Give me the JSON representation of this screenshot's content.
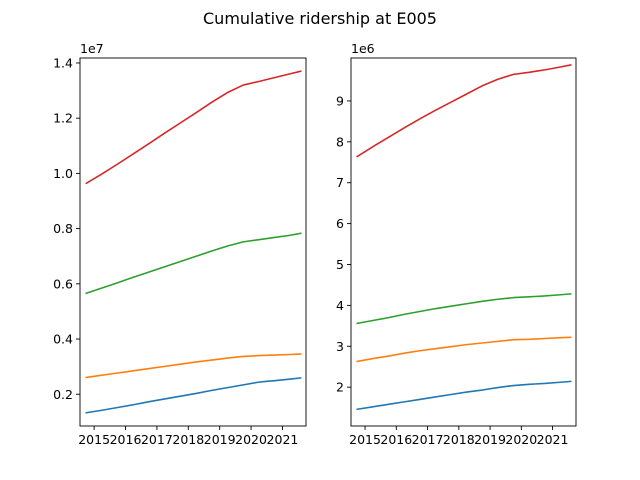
{
  "figure": {
    "title": "Cumulative ridership at E005"
  },
  "chart_data": [
    {
      "type": "line",
      "title": "",
      "xlabel": "",
      "ylabel": "",
      "y_offset_label": "1e7",
      "xlim": [
        2014.55,
        2021.75
      ],
      "ylim": [
        850000,
        14180000
      ],
      "x_ticks": [
        2015,
        2016,
        2017,
        2018,
        2019,
        2020,
        2021
      ],
      "x_tick_labels": [
        "2015",
        "2016",
        "2017",
        "2018",
        "2019",
        "2020",
        "2021"
      ],
      "y_ticks": [
        2000000,
        4000000,
        6000000,
        8000000,
        10000000,
        12000000,
        14000000
      ],
      "y_tick_labels": [
        "0.2",
        "0.4",
        "0.6",
        "0.8",
        "1.0",
        "1.2",
        "1.4"
      ],
      "grid": false,
      "x": [
        2014.75,
        2015.25,
        2015.75,
        2016.25,
        2016.75,
        2017.25,
        2017.75,
        2018.25,
        2018.75,
        2019.25,
        2019.75,
        2020.25,
        2020.5,
        2020.75,
        2021.25,
        2021.58
      ],
      "series": [
        {
          "color": "#1f77b4",
          "values": [
            1330000,
            1420000,
            1520000,
            1620000,
            1730000,
            1830000,
            1930000,
            2030000,
            2140000,
            2240000,
            2340000,
            2440000,
            2470000,
            2490000,
            2550000,
            2590000
          ]
        },
        {
          "color": "#ff7f0e",
          "values": [
            2610000,
            2690000,
            2770000,
            2850000,
            2930000,
            3010000,
            3090000,
            3170000,
            3240000,
            3310000,
            3370000,
            3400000,
            3410000,
            3420000,
            3440000,
            3460000
          ]
        },
        {
          "color": "#2ca02c",
          "values": [
            5660000,
            5850000,
            6040000,
            6240000,
            6430000,
            6620000,
            6810000,
            7000000,
            7190000,
            7370000,
            7520000,
            7600000,
            7640000,
            7680000,
            7760000,
            7830000
          ]
        },
        {
          "color": "#d62728",
          "values": [
            9640000,
            9980000,
            10340000,
            10710000,
            11080000,
            11460000,
            11830000,
            12200000,
            12580000,
            12930000,
            13200000,
            13330000,
            13400000,
            13470000,
            13610000,
            13700000
          ]
        }
      ]
    },
    {
      "type": "line",
      "title": "",
      "xlabel": "",
      "ylabel": "",
      "y_offset_label": "1e6",
      "xlim": [
        2014.55,
        2021.75
      ],
      "ylim": [
        1050000,
        10050000
      ],
      "x_ticks": [
        2015,
        2016,
        2017,
        2018,
        2019,
        2020,
        2021
      ],
      "x_tick_labels": [
        "2015",
        "2016",
        "2017",
        "2018",
        "2019",
        "2020",
        "2021"
      ],
      "y_ticks": [
        2000000,
        3000000,
        4000000,
        5000000,
        6000000,
        7000000,
        8000000,
        9000000
      ],
      "y_tick_labels": [
        "2",
        "3",
        "4",
        "5",
        "6",
        "7",
        "8",
        "9"
      ],
      "grid": false,
      "x": [
        2014.75,
        2015.25,
        2015.75,
        2016.25,
        2016.75,
        2017.25,
        2017.75,
        2018.25,
        2018.75,
        2019.25,
        2019.75,
        2020.25,
        2020.5,
        2020.75,
        2021.25,
        2021.58
      ],
      "series": [
        {
          "color": "#1f77b4",
          "values": [
            1460000,
            1520000,
            1580000,
            1640000,
            1700000,
            1760000,
            1820000,
            1880000,
            1930000,
            1990000,
            2040000,
            2070000,
            2080000,
            2090000,
            2120000,
            2140000
          ]
        },
        {
          "color": "#ff7f0e",
          "values": [
            2630000,
            2700000,
            2760000,
            2830000,
            2890000,
            2940000,
            2990000,
            3040000,
            3080000,
            3120000,
            3160000,
            3170000,
            3180000,
            3190000,
            3210000,
            3220000
          ]
        },
        {
          "color": "#2ca02c",
          "values": [
            3560000,
            3630000,
            3700000,
            3780000,
            3850000,
            3920000,
            3980000,
            4040000,
            4100000,
            4150000,
            4190000,
            4210000,
            4220000,
            4230000,
            4260000,
            4280000
          ]
        },
        {
          "color": "#d62728",
          "values": [
            7640000,
            7880000,
            8110000,
            8340000,
            8560000,
            8770000,
            8970000,
            9170000,
            9370000,
            9530000,
            9650000,
            9700000,
            9730000,
            9760000,
            9830000,
            9880000
          ]
        }
      ]
    }
  ]
}
